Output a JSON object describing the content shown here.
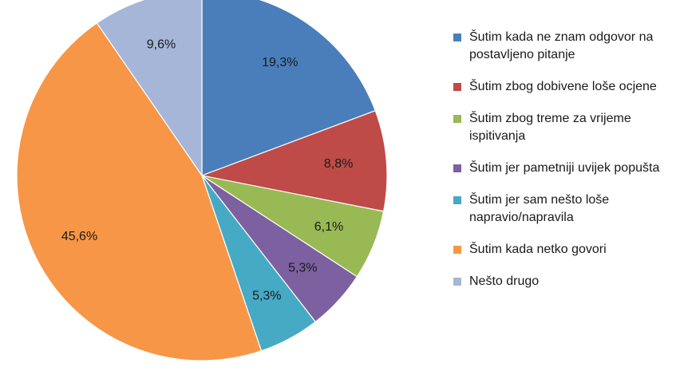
{
  "chart_data": {
    "type": "pie",
    "categories": [
      "Šutim kada ne znam odgovor na postavljeno pitanje",
      "Šutim zbog dobivene loše ocjene",
      "Šutim zbog treme za vrijeme ispitivanja",
      "Šutim jer pametniji uvijek popušta",
      "Šutim jer sam nešto loše napravio/napravila",
      "Šutim kada netko govori",
      "Nešto drugo"
    ],
    "values": [
      19.3,
      8.8,
      6.1,
      5.3,
      5.3,
      45.6,
      9.6
    ],
    "data_labels": [
      "19,3%",
      "8,8%",
      "6,1%",
      "5,3%",
      "5,3%",
      "45,6%",
      "9,6%"
    ],
    "colors": [
      "#4a7ebb",
      "#be4b48",
      "#98b954",
      "#7d60a0",
      "#46aac5",
      "#f79646",
      "#a5b6d8"
    ],
    "start_angle_deg": 0,
    "direction": "clockwise",
    "legend_position": "right",
    "title": ""
  }
}
